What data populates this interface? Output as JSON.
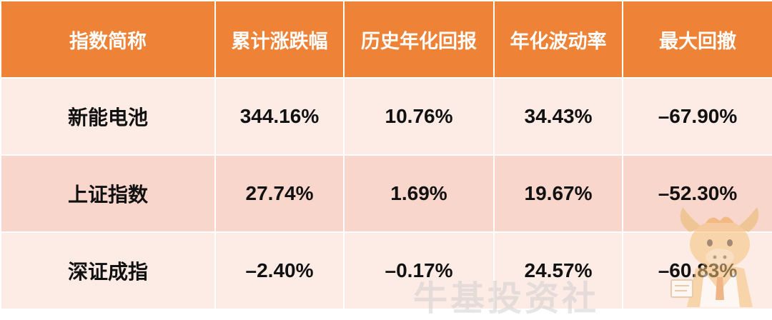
{
  "table": {
    "headers": [
      "指数简称",
      "累计涨跌幅",
      "历史年化回报",
      "年化波动率",
      "最大回撤"
    ],
    "rows": [
      [
        "新能电池",
        "344.16%",
        "10.76%",
        "34.43%",
        "–67.90%"
      ],
      [
        "上证指数",
        "27.74%",
        "1.69%",
        "19.67%",
        "–52.30%"
      ],
      [
        "深证成指",
        "–2.40%",
        "–0.17%",
        "24.57%",
        "–60.83%"
      ]
    ]
  },
  "watermark": {
    "text": "牛基投资社",
    "icon": "bull-mascot-icon"
  },
  "colors": {
    "header_bg": "#ee8236",
    "row_light": "#fdebe6",
    "row_dark": "#f8d6cc"
  }
}
